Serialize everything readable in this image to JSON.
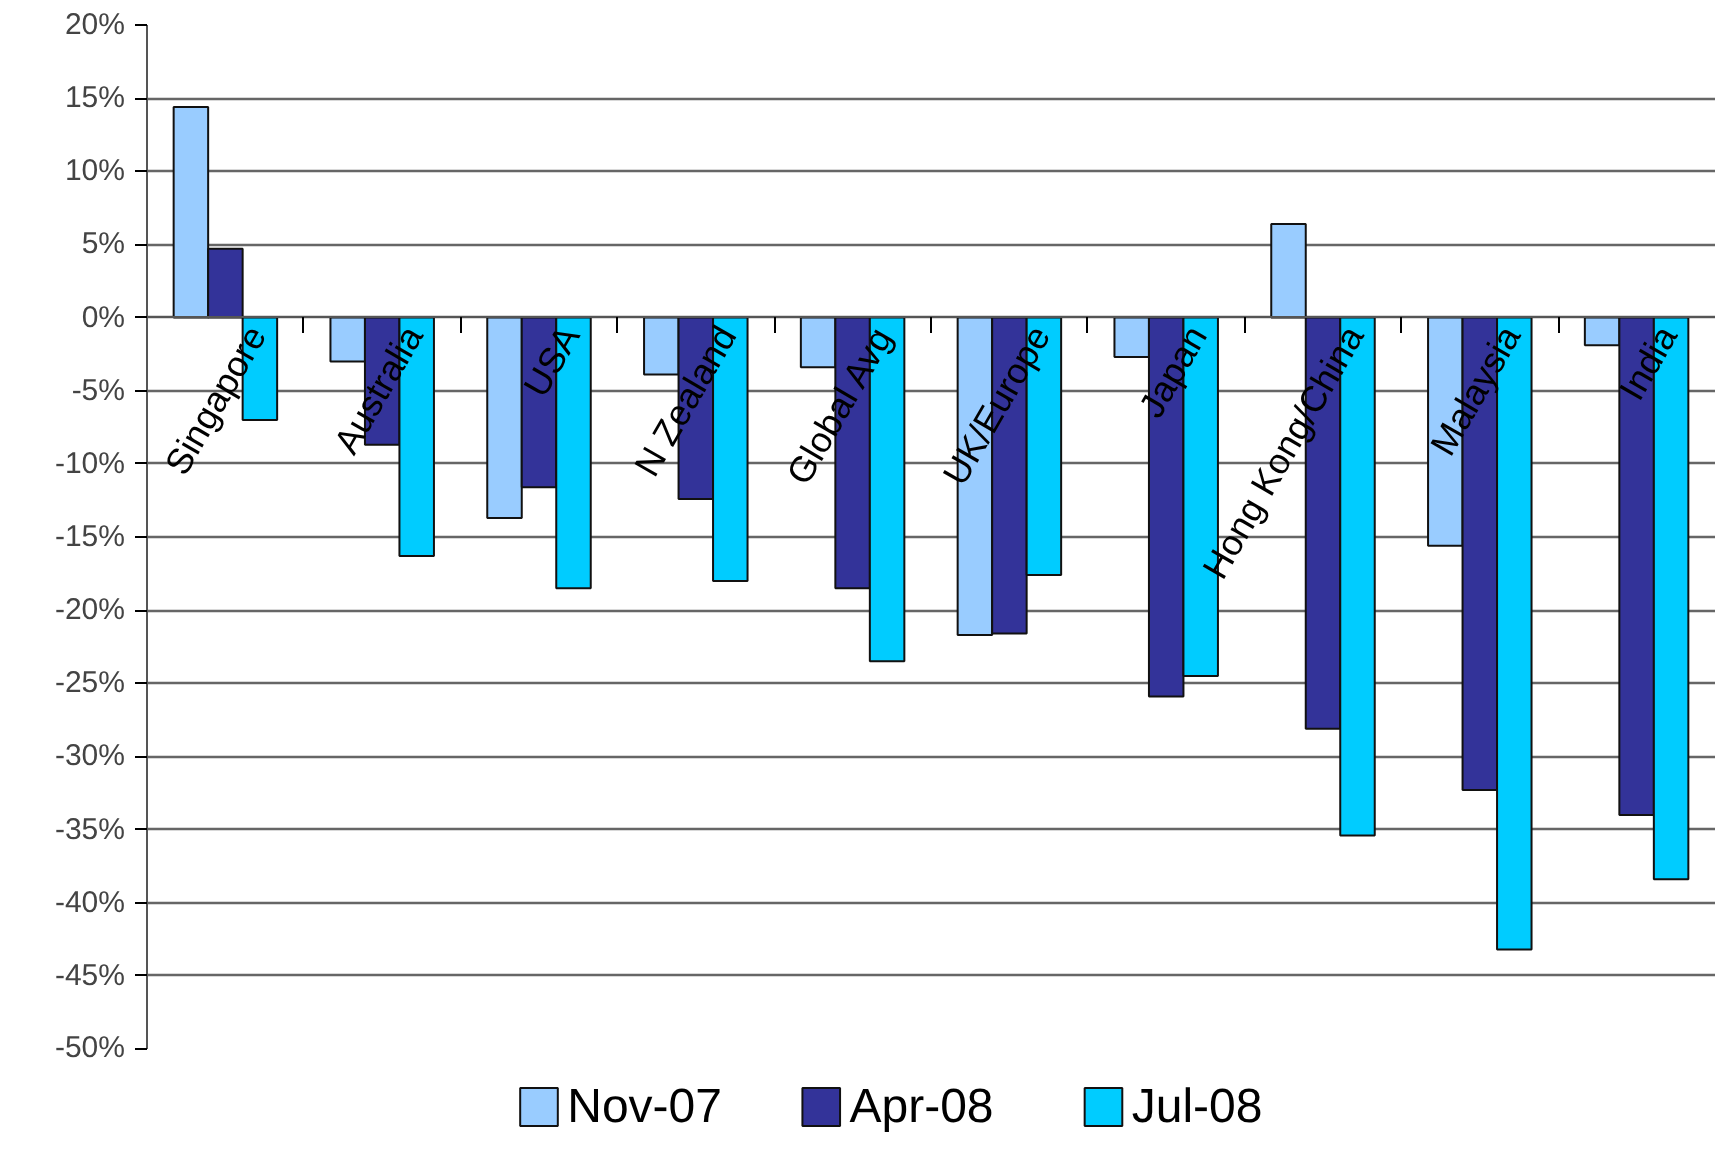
{
  "chart_data": {
    "type": "bar",
    "categories": [
      "Singapore",
      "Australia",
      "USA",
      "N Zealand",
      "Global Avg",
      "UK/Europe",
      "Japan",
      "Hong Kong/China",
      "Malaysia",
      "India"
    ],
    "series": [
      {
        "name": "Nov-07",
        "color": "#99ccff",
        "values": [
          14.4,
          -3.0,
          -13.7,
          -3.9,
          -3.4,
          -21.7,
          -2.7,
          6.4,
          -15.6,
          -1.9
        ]
      },
      {
        "name": "Apr-08",
        "color": "#333399",
        "values": [
          4.7,
          -8.7,
          -11.6,
          -12.4,
          -18.5,
          -21.6,
          -25.9,
          -28.1,
          -32.3,
          -34.0
        ]
      },
      {
        "name": "Jul-08",
        "color": "#00ccff",
        "values": [
          -7.0,
          -16.3,
          -18.5,
          -18.0,
          -23.5,
          -17.6,
          -24.5,
          -35.4,
          -43.2,
          -38.4
        ]
      }
    ],
    "ylim": [
      -50,
      20
    ],
    "yticks": [
      {
        "value": 20,
        "label": "20%"
      },
      {
        "value": 15,
        "label": "15%"
      },
      {
        "value": 10,
        "label": "10%"
      },
      {
        "value": 5,
        "label": "5%"
      },
      {
        "value": 0,
        "label": "0%"
      },
      {
        "value": -5,
        "label": "-5%"
      },
      {
        "value": -10,
        "label": "-10%"
      },
      {
        "value": -15,
        "label": "-15%"
      },
      {
        "value": -20,
        "label": "-20%"
      },
      {
        "value": -25,
        "label": "-25%"
      },
      {
        "value": -30,
        "label": "-30%"
      },
      {
        "value": -35,
        "label": "-35%"
      },
      {
        "value": -40,
        "label": "-40%"
      },
      {
        "value": -45,
        "label": "-45%"
      },
      {
        "value": -50,
        "label": "-50%"
      }
    ],
    "grid": "y",
    "legend": "bottom"
  }
}
